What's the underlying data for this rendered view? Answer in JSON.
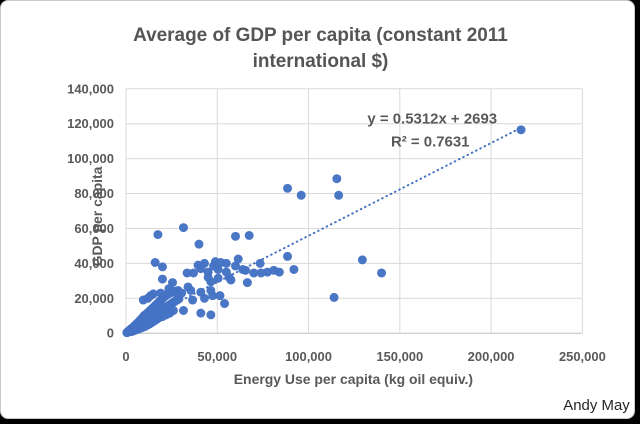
{
  "watermark": "Andy May",
  "colors": {
    "point": "#4472C4",
    "trendline": "#4472C4",
    "grid": "#D9D9D9",
    "axis_line": "#BFBFBF",
    "text": "#595959"
  },
  "chart_data": {
    "type": "scatter",
    "title": "Average of GDP per capita  (constant 2011 international $)",
    "title_lines": [
      "Average of GDP per capita  (constant 2011",
      "international $)"
    ],
    "xlabel": "Energy Use per capita (kg oil equiv.)",
    "ylabel": "GDP per capita",
    "xlim": [
      0,
      250000
    ],
    "ylim": [
      0,
      140000
    ],
    "x_ticks": [
      0,
      50000,
      100000,
      150000,
      200000,
      250000
    ],
    "x_tick_labels": [
      "0",
      "50,000",
      "100,000",
      "150,000",
      "200,000",
      "250,000"
    ],
    "y_ticks": [
      0,
      20000,
      40000,
      60000,
      80000,
      100000,
      120000,
      140000
    ],
    "y_tick_labels": [
      "0",
      "20,000",
      "40,000",
      "60,000",
      "80,000",
      "100,000",
      "120,000",
      "140,000"
    ],
    "grid": true,
    "legend": "none",
    "trendline": {
      "equation": "y = 0.5312x + 2693",
      "r_squared": "R² = 0.7631",
      "slope": 0.5312,
      "intercept": 2693,
      "x_start": 0,
      "x_end": 216400,
      "style": "dotted"
    },
    "points": [
      [
        500,
        300
      ],
      [
        700,
        500
      ],
      [
        1000,
        600
      ],
      [
        1200,
        1000
      ],
      [
        1500,
        800
      ],
      [
        1700,
        1400
      ],
      [
        2000,
        1000
      ],
      [
        2200,
        1900
      ],
      [
        2500,
        1300
      ],
      [
        2700,
        2300
      ],
      [
        3000,
        1600
      ],
      [
        3200,
        2800
      ],
      [
        3000,
        900
      ],
      [
        3500,
        2000
      ],
      [
        3700,
        3200
      ],
      [
        4000,
        2300
      ],
      [
        4200,
        3700
      ],
      [
        4000,
        1300
      ],
      [
        4500,
        2700
      ],
      [
        4700,
        4200
      ],
      [
        5000,
        3000
      ],
      [
        5200,
        4700
      ],
      [
        5000,
        1700
      ],
      [
        5500,
        3400
      ],
      [
        5700,
        5200
      ],
      [
        6000,
        3700
      ],
      [
        6200,
        5700
      ],
      [
        6000,
        2100
      ],
      [
        6500,
        4100
      ],
      [
        6700,
        6200
      ],
      [
        7000,
        4400
      ],
      [
        7200,
        6700
      ],
      [
        7000,
        2500
      ],
      [
        7500,
        4800
      ],
      [
        7700,
        7300
      ],
      [
        8000,
        5100
      ],
      [
        8200,
        7800
      ],
      [
        8000,
        2900
      ],
      [
        8500,
        5500
      ],
      [
        8700,
        8400
      ],
      [
        9000,
        5800
      ],
      [
        9200,
        9000
      ],
      [
        9000,
        3300
      ],
      [
        9500,
        6200
      ],
      [
        9700,
        9600
      ],
      [
        10000,
        6500
      ],
      [
        10200,
        10300
      ],
      [
        10000,
        3700
      ],
      [
        11000,
        7200
      ],
      [
        11200,
        11000
      ],
      [
        11000,
        4200
      ],
      [
        12000,
        7900
      ],
      [
        12200,
        12000
      ],
      [
        12000,
        4800
      ],
      [
        13000,
        8600
      ],
      [
        13200,
        13000
      ],
      [
        13000,
        5400
      ],
      [
        14000,
        9300
      ],
      [
        14200,
        14000
      ],
      [
        14000,
        6000
      ],
      [
        15000,
        10000
      ],
      [
        15200,
        15000
      ],
      [
        15000,
        6700
      ],
      [
        16000,
        10700
      ],
      [
        16200,
        16000
      ],
      [
        16000,
        7400
      ],
      [
        17000,
        11400
      ],
      [
        17200,
        17000
      ],
      [
        17000,
        8100
      ],
      [
        18000,
        12100
      ],
      [
        18200,
        18000
      ],
      [
        18000,
        8800
      ],
      [
        19000,
        12800
      ],
      [
        19200,
        19000
      ],
      [
        20000,
        13500
      ],
      [
        20200,
        20000
      ],
      [
        20000,
        9500
      ],
      [
        21000,
        14200
      ],
      [
        21200,
        21000
      ],
      [
        22000,
        14900
      ],
      [
        22200,
        21800
      ],
      [
        22000,
        10500
      ],
      [
        23000,
        15600
      ],
      [
        23200,
        22500
      ],
      [
        24000,
        16300
      ],
      [
        24200,
        23000
      ],
      [
        24000,
        11500
      ],
      [
        25000,
        17000
      ],
      [
        25500,
        23500
      ],
      [
        26000,
        17700
      ],
      [
        26500,
        24000
      ],
      [
        26000,
        13000
      ],
      [
        27000,
        18400
      ],
      [
        28000,
        19000
      ],
      [
        28500,
        24500
      ],
      [
        29000,
        19700
      ],
      [
        9500,
        19000
      ],
      [
        12000,
        20000
      ],
      [
        13500,
        21500
      ],
      [
        15000,
        22500
      ],
      [
        19000,
        23000
      ],
      [
        16000,
        40500
      ],
      [
        17500,
        56500
      ],
      [
        20000,
        38000
      ],
      [
        20000,
        31000
      ],
      [
        23500,
        25500
      ],
      [
        25500,
        29000
      ],
      [
        26000,
        23500
      ],
      [
        30500,
        23000
      ],
      [
        31500,
        13000
      ],
      [
        31500,
        60500
      ],
      [
        33500,
        34500
      ],
      [
        34000,
        26500
      ],
      [
        35500,
        24500
      ],
      [
        36500,
        19000
      ],
      [
        37000,
        34500
      ],
      [
        39500,
        39000
      ],
      [
        40000,
        51000
      ],
      [
        41000,
        37000
      ],
      [
        41000,
        23500
      ],
      [
        41000,
        11500
      ],
      [
        43000,
        40000
      ],
      [
        43000,
        20000
      ],
      [
        45000,
        35000
      ],
      [
        45000,
        32000
      ],
      [
        46500,
        29500
      ],
      [
        46500,
        24500
      ],
      [
        46500,
        10500
      ],
      [
        47500,
        21500
      ],
      [
        48000,
        38500
      ],
      [
        49000,
        41000
      ],
      [
        50500,
        36500
      ],
      [
        50500,
        31500
      ],
      [
        51500,
        21500
      ],
      [
        52000,
        40500
      ],
      [
        54000,
        17000
      ],
      [
        55000,
        40000
      ],
      [
        55000,
        35000
      ],
      [
        56500,
        32000
      ],
      [
        57500,
        30500
      ],
      [
        60000,
        38500
      ],
      [
        60000,
        55500
      ],
      [
        61500,
        42500
      ],
      [
        64000,
        36500
      ],
      [
        65500,
        36000
      ],
      [
        66500,
        29000
      ],
      [
        67500,
        56000
      ],
      [
        70000,
        34500
      ],
      [
        73500,
        40000
      ],
      [
        74000,
        34500
      ],
      [
        77500,
        35000
      ],
      [
        81000,
        36000
      ],
      [
        84000,
        35000
      ],
      [
        88500,
        83000
      ],
      [
        88500,
        44000
      ],
      [
        92000,
        36500
      ],
      [
        96000,
        79000
      ],
      [
        114000,
        20500
      ],
      [
        115500,
        88500
      ],
      [
        116500,
        79000
      ],
      [
        129500,
        42000
      ],
      [
        140000,
        34500
      ],
      [
        216400,
        116500
      ]
    ]
  }
}
